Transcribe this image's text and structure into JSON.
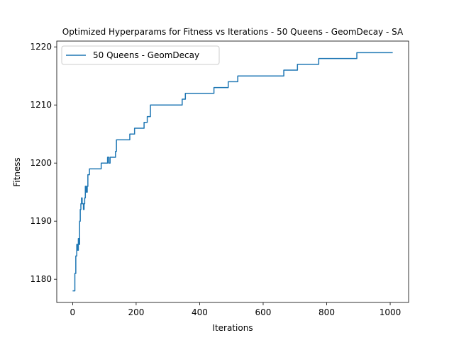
{
  "chart_data": {
    "type": "line",
    "title": "Optimized Hyperparams for Fitness vs Iterations - 50 Queens - GeomDecay - SA",
    "xlabel": "Iterations",
    "ylabel": "Fitness",
    "xlim": [
      -50,
      1058
    ],
    "ylim": [
      1176,
      1221
    ],
    "xticks": [
      0,
      200,
      400,
      600,
      800,
      1000
    ],
    "yticks": [
      1180,
      1190,
      1200,
      1210,
      1220
    ],
    "grid": false,
    "legend": "top-left",
    "series": [
      {
        "name": "50 Queens - GeomDecay",
        "color": "#1f77b4",
        "step": true,
        "x": [
          0,
          7,
          10,
          13,
          16,
          18,
          20,
          22,
          24,
          26,
          28,
          30,
          32,
          34,
          36,
          38,
          40,
          43,
          46,
          48,
          51,
          53,
          55,
          58,
          62,
          68,
          90,
          108,
          110,
          114,
          118,
          135,
          138,
          143,
          180,
          195,
          225,
          235,
          245,
          255,
          345,
          355,
          445,
          490,
          520,
          665,
          708,
          775,
          895,
          1008
        ],
        "y": [
          1178,
          1181,
          1184,
          1186,
          1185,
          1187,
          1186,
          1190,
          1192,
          1193,
          1194,
          1193,
          1193,
          1192,
          1193,
          1194,
          1196,
          1195,
          1196,
          1198,
          1198,
          1199,
          1199,
          1199,
          1199,
          1199,
          1200,
          1200,
          1201,
          1200,
          1201,
          1202,
          1204,
          1204,
          1205,
          1206,
          1207,
          1208,
          1210,
          1210,
          1211,
          1212,
          1213,
          1214,
          1215,
          1216,
          1217,
          1218,
          1219,
          1219
        ]
      }
    ]
  }
}
